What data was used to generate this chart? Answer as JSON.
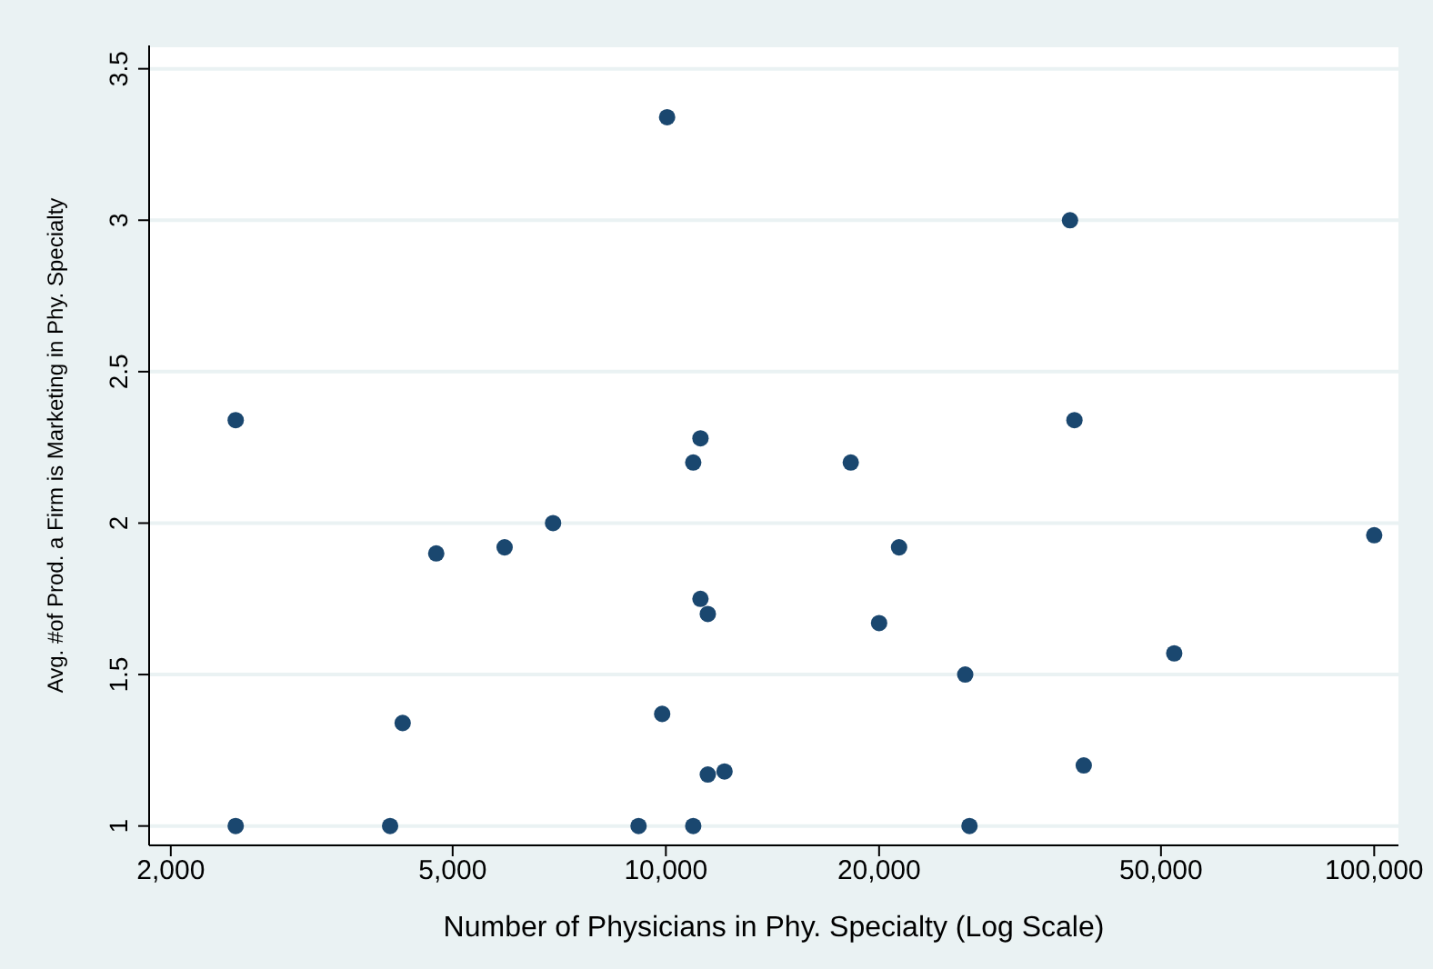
{
  "chart_data": {
    "type": "scatter",
    "xlabel": "Number of Physicians in Phy. Specialty (Log Scale)",
    "ylabel": "Avg. #of Prod. a Firm is Marketing in Phy. Specialty",
    "log": "x",
    "grid": "y",
    "marker": "circle",
    "xlim": [
      1864,
      108200
    ],
    "xticks": [
      {
        "value": 2000,
        "label": "2,000"
      },
      {
        "value": 5000,
        "label": "5,000"
      },
      {
        "value": 10000,
        "label": "10,000"
      },
      {
        "value": 20000,
        "label": "20,000"
      },
      {
        "value": 50000,
        "label": "50,000"
      },
      {
        "value": 100000,
        "label": "100,000"
      }
    ],
    "ylim": [
      0.936,
      3.577
    ],
    "yticks": [
      1,
      1.5,
      2,
      2.5,
      3,
      3.5
    ],
    "x": [
      10040,
      2470,
      11190,
      10930,
      37200,
      37740,
      18240,
      2470,
      4080,
      9150,
      10930,
      4740,
      5920,
      6930,
      11190,
      11460,
      4250,
      9880,
      11460,
      12100,
      21340,
      100000,
      20000,
      52200,
      26460,
      38900,
      26830
    ],
    "series": [
      {
        "color": "#1a476f",
        "values": [
          3.34,
          2.34,
          2.28,
          2.2,
          3.0,
          2.34,
          2.2,
          1,
          1,
          1,
          1,
          1.9,
          1.92,
          2.0,
          1.75,
          1.7,
          1.34,
          1.37,
          1.17,
          1.18,
          1.92,
          1.96,
          1.67,
          1.57,
          1.5,
          1.2,
          1
        ]
      }
    ]
  }
}
